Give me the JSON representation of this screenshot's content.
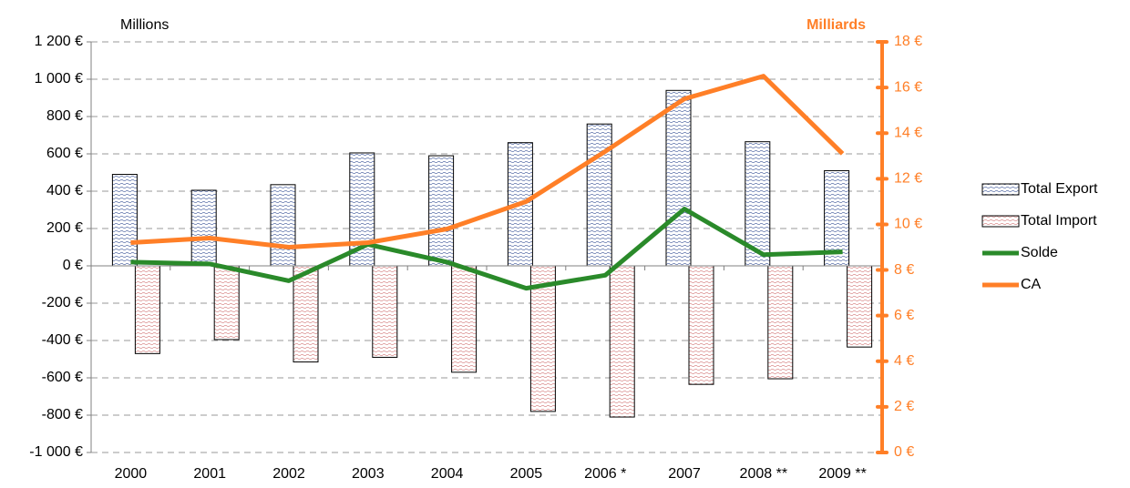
{
  "chart_data": {
    "type": "bar",
    "categories": [
      "2000",
      "2001",
      "2002",
      "2003",
      "2004",
      "2005",
      "2006 *",
      "2007",
      "2008 **",
      "2009 **"
    ],
    "y_label": "Millions",
    "y2_label": "Milliards",
    "ylim": [
      -1000,
      1200
    ],
    "yticks": [
      {
        "value": -1000,
        "label": "-1 000 €"
      },
      {
        "value": -800,
        "label": "-800 €"
      },
      {
        "value": -600,
        "label": "-600 €"
      },
      {
        "value": -400,
        "label": "-400 €"
      },
      {
        "value": -200,
        "label": "-200 €"
      },
      {
        "value": 0,
        "label": "0 €"
      },
      {
        "value": 200,
        "label": "200 €"
      },
      {
        "value": 400,
        "label": "400 €"
      },
      {
        "value": 600,
        "label": "600 €"
      },
      {
        "value": 800,
        "label": "800 €"
      },
      {
        "value": 1000,
        "label": "1 000 €"
      },
      {
        "value": 1200,
        "label": "1 200 €"
      }
    ],
    "y2lim": [
      0,
      18
    ],
    "y2ticks": [
      {
        "value": 0,
        "label": "0 €"
      },
      {
        "value": 2,
        "label": "2 €"
      },
      {
        "value": 4,
        "label": "4 €"
      },
      {
        "value": 6,
        "label": "6 €"
      },
      {
        "value": 8,
        "label": "8 €"
      },
      {
        "value": 10,
        "label": "10 €"
      },
      {
        "value": 12,
        "label": "12 €"
      },
      {
        "value": 14,
        "label": "14 €"
      },
      {
        "value": 16,
        "label": "16 €"
      },
      {
        "value": 18,
        "label": "18 €"
      }
    ],
    "grid": true,
    "legend": "right",
    "series": [
      {
        "name": "Total Export",
        "type": "bar",
        "color": "#5a6fa8",
        "values": [
          490,
          405,
          435,
          605,
          590,
          660,
          760,
          940,
          665,
          510
        ]
      },
      {
        "name": "Total Import",
        "type": "bar",
        "color": "#d98c8c",
        "values": [
          -470,
          -395,
          -515,
          -490,
          -570,
          -780,
          -810,
          -635,
          -605,
          -435
        ]
      },
      {
        "name": "Solde",
        "type": "line",
        "color": "#2a8a2a",
        "values": [
          20,
          10,
          -80,
          115,
          20,
          -120,
          -50,
          305,
          60,
          75
        ]
      },
      {
        "name": "CA",
        "type": "line",
        "axis": "y2",
        "color": "#ff7f27",
        "values": [
          9.2,
          9.4,
          9.0,
          9.2,
          9.8,
          11.0,
          13.2,
          15.5,
          16.5,
          13.1
        ]
      }
    ]
  }
}
